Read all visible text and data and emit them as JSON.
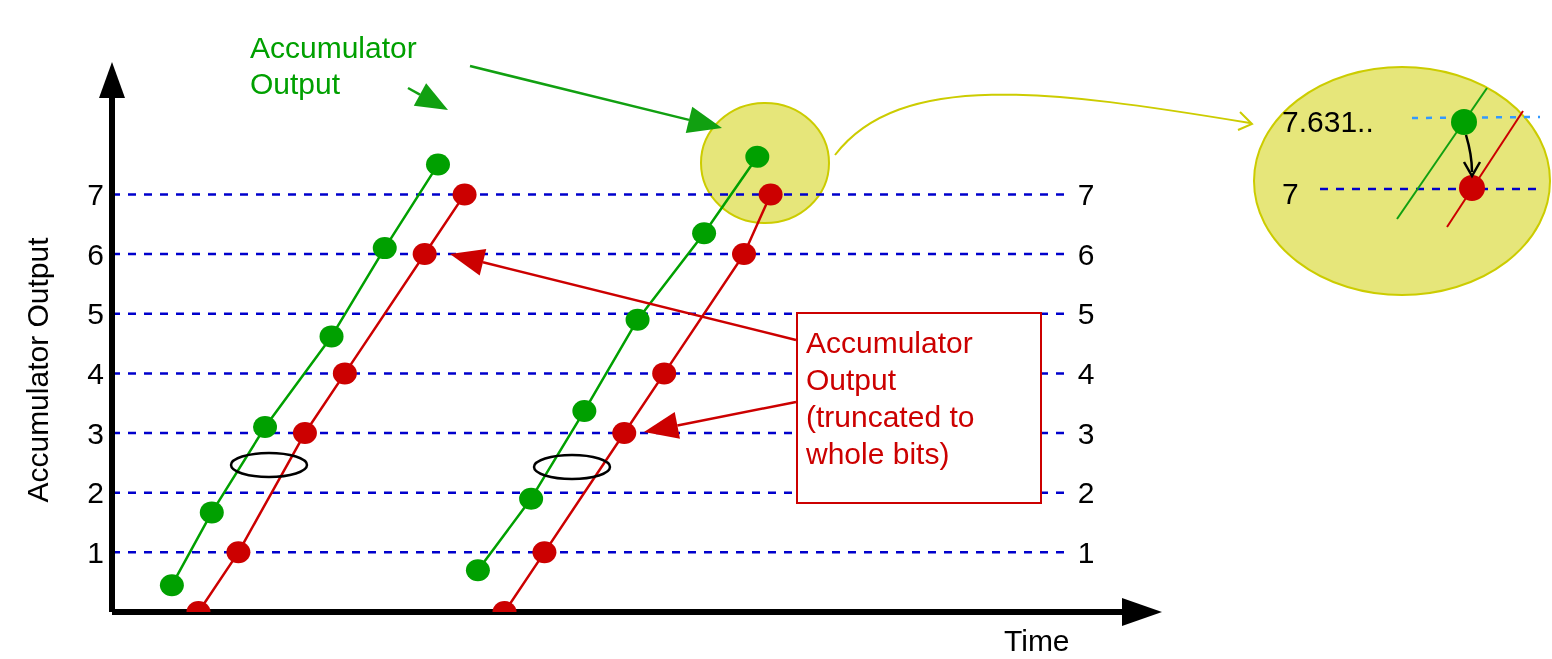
{
  "chart_data": {
    "type": "line",
    "xlabel": "Time",
    "ylabel": "Accumulator Output",
    "categories": [
      null,
      null,
      null,
      null,
      null,
      null,
      null,
      null,
      null,
      null,
      null,
      null,
      null,
      null,
      null,
      null,
      null,
      null,
      null,
      null,
      null,
      null,
      null,
      null,
      null,
      null,
      null,
      null,
      null,
      null,
      null,
      null,
      null,
      null,
      null,
      null,
      null,
      null,
      null,
      null,
      null,
      null,
      null,
      null,
      null,
      null,
      null,
      null,
      null,
      null,
      null,
      null,
      null,
      null,
      null,
      null,
      null,
      null,
      null,
      null,
      null,
      null,
      null,
      null,
      null,
      null,
      null,
      null,
      null,
      null,
      null,
      null
    ],
    "ylim": [
      0,
      8.7
    ],
    "yticks": [
      1,
      2,
      3,
      4,
      5,
      6,
      7
    ],
    "y2lim": [
      0,
      8.7
    ],
    "y2ticks": [
      1,
      2,
      3,
      4,
      5,
      6,
      7
    ],
    "tick_labels": "y",
    "grid": "y",
    "series": [
      {
        "name": "Accumulator Output",
        "color": "#00a000",
        "marker": "circle",
        "values": [
          null,
          null,
          null,
          null,
          0.45,
          null,
          null,
          1.67,
          null,
          null,
          null,
          3.1,
          null,
          null,
          null,
          null,
          4.62,
          null,
          null,
          null,
          6.1,
          null,
          null,
          null,
          7.5,
          null,
          null,
          null,
          null,
          null,
          null,
          null,
          null,
          null,
          null,
          null,
          null,
          null,
          null,
          null,
          null,
          null,
          null,
          null,
          null,
          null,
          null,
          null,
          null,
          null,
          null,
          null,
          null,
          null,
          null,
          null,
          null,
          null,
          null,
          null,
          null,
          null,
          null,
          null,
          null,
          null,
          null,
          null,
          null,
          null,
          null,
          null
        ]
      },
      {
        "color": "#00a000",
        "marker": "circle",
        "values": [
          null,
          null,
          null,
          null,
          null,
          null,
          null,
          null,
          null,
          null,
          null,
          null,
          null,
          null,
          null,
          null,
          null,
          null,
          null,
          null,
          null,
          null,
          null,
          null,
          null,
          null,
          null,
          0.7,
          null,
          null,
          null,
          1.9,
          null,
          null,
          null,
          3.37,
          null,
          null,
          null,
          4.9,
          null,
          null,
          null,
          null,
          6.35,
          null,
          null,
          null,
          7.63,
          null,
          null,
          null,
          null,
          null,
          null,
          null,
          null,
          null,
          null,
          null,
          null,
          null,
          null,
          null,
          null,
          null,
          null,
          null,
          null,
          null,
          null,
          null
        ]
      },
      {
        "name": "Accumulator Output (truncated to whole bits)",
        "color": "#cc0000",
        "marker": "circle",
        "values": [
          null,
          null,
          null,
          null,
          null,
          null,
          0,
          null,
          null,
          1,
          null,
          null,
          null,
          null,
          3,
          null,
          null,
          4,
          null,
          null,
          null,
          null,
          null,
          6,
          null,
          null,
          7,
          null,
          null,
          null,
          null,
          null,
          null,
          null,
          null,
          null,
          null,
          null,
          null,
          null,
          null,
          null,
          null,
          null,
          null,
          null,
          null,
          null,
          null,
          null,
          null,
          null,
          null,
          null,
          null,
          null,
          null,
          null,
          null,
          null,
          null,
          null,
          null,
          null,
          null,
          null,
          null,
          null,
          null,
          null,
          null,
          null
        ]
      },
      {
        "color": "#cc0000",
        "marker": "circle",
        "values": [
          null,
          null,
          null,
          null,
          null,
          null,
          null,
          null,
          null,
          null,
          null,
          null,
          null,
          null,
          null,
          null,
          null,
          null,
          null,
          null,
          null,
          null,
          null,
          null,
          null,
          null,
          null,
          null,
          null,
          0,
          null,
          null,
          1,
          null,
          null,
          null,
          null,
          null,
          3,
          null,
          null,
          4,
          null,
          null,
          null,
          null,
          null,
          6,
          null,
          7,
          null,
          null,
          null,
          null,
          null,
          null,
          null,
          null,
          null,
          null,
          null,
          null,
          null,
          null,
          null,
          null,
          null,
          null,
          null,
          null,
          null,
          null
        ]
      }
    ],
    "annotations": [
      "7.631..",
      "7"
    ]
  }
}
